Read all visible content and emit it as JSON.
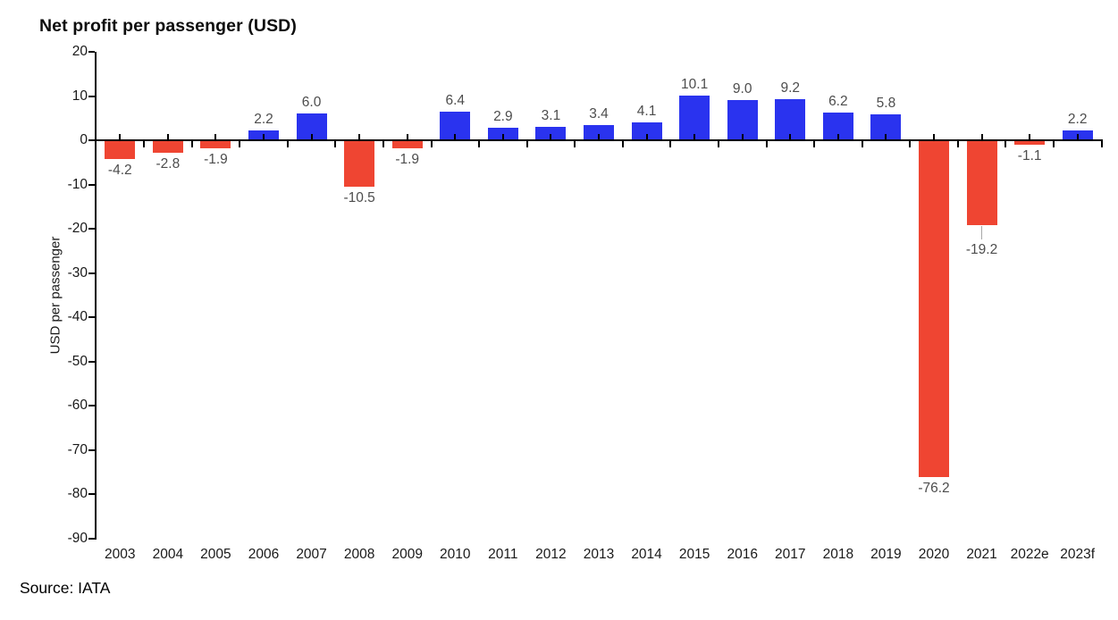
{
  "page": {
    "title": "Net profit per passenger (USD)",
    "source": "Source: IATA"
  },
  "chart_data": {
    "type": "bar",
    "title": "Net profit per passenger (USD)",
    "xlabel": "",
    "ylabel": "USD per passenger",
    "categories": [
      "2003",
      "2004",
      "2005",
      "2006",
      "2007",
      "2008",
      "2009",
      "2010",
      "2011",
      "2012",
      "2013",
      "2014",
      "2015",
      "2016",
      "2017",
      "2018",
      "2019",
      "2020",
      "2021",
      "2022e",
      "2023f"
    ],
    "values": [
      -4.2,
      -2.8,
      -1.9,
      2.2,
      6.0,
      -10.5,
      -1.9,
      6.4,
      2.9,
      3.1,
      3.4,
      4.1,
      10.1,
      9.0,
      9.2,
      6.2,
      5.8,
      -76.2,
      -19.2,
      -1.1,
      2.2
    ],
    "value_labels": [
      "-4.2",
      "-2.8",
      "-1.9",
      "2.2",
      "6.0",
      "-10.5",
      "-1.9",
      "6.4",
      "2.9",
      "3.1",
      "3.4",
      "4.1",
      "10.1",
      "9.0",
      "9.2",
      "6.2",
      "5.8",
      "-76.2",
      "-19.2",
      "-1.1",
      "2.2"
    ],
    "ylim": [
      -90,
      20
    ],
    "ytick_step": 10,
    "grid": false,
    "legend": false,
    "positive_color": "#2A33EF",
    "negative_color": "#EF4532",
    "axis_color": "#000000",
    "tick_label_color": "#1a1a1a",
    "value_label_color": "#4d4d4d",
    "leader_line_category": "2021",
    "source": "Source: IATA"
  }
}
